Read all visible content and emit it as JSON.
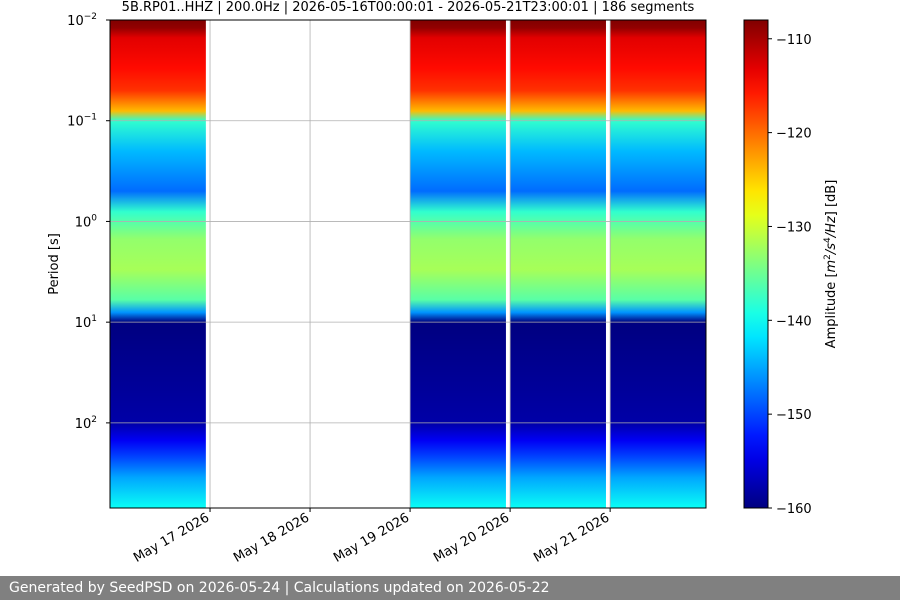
{
  "chart_data": {
    "type": "heatmap",
    "title": "5B.RP01..HHZ | 200.0Hz | 2026-05-16T00:00:01 - 2026-05-21T23:00:01 | 186 segments",
    "xlabel": "",
    "ylabel": "Period [s]",
    "yscale": "log",
    "y_inverted": true,
    "ylim": [
      0.01,
      700
    ],
    "x_range_days": [
      "2026-05-16T00:00",
      "2026-05-21T23:00"
    ],
    "x_ticks": [
      {
        "date": "2026-05-17",
        "label": "May 17 2026"
      },
      {
        "date": "2026-05-18",
        "label": "May 18 2026"
      },
      {
        "date": "2026-05-19",
        "label": "May 19 2026"
      },
      {
        "date": "2026-05-20",
        "label": "May 20 2026"
      },
      {
        "date": "2026-05-21",
        "label": "May 21 2026"
      }
    ],
    "y_ticks": [
      {
        "value": 0.01,
        "base": "10",
        "exp": "−2"
      },
      {
        "value": 0.1,
        "base": "10",
        "exp": "−1"
      },
      {
        "value": 1,
        "base": "10",
        "exp": "0"
      },
      {
        "value": 10,
        "base": "10",
        "exp": "1"
      },
      {
        "value": 100,
        "base": "10",
        "exp": "2"
      }
    ],
    "data_segments": [
      {
        "start": "2026-05-16T00:00",
        "end": "2026-05-16T23:00"
      },
      {
        "start": "2026-05-19T00:00",
        "end": "2026-05-19T23:00"
      },
      {
        "start": "2026-05-20T00:00",
        "end": "2026-05-20T23:00"
      },
      {
        "start": "2026-05-21T00:00",
        "end": "2026-05-21T23:00"
      }
    ],
    "amplitude_profile_db": [
      {
        "period": 0.01,
        "value": -108
      },
      {
        "period": 0.012,
        "value": -109
      },
      {
        "period": 0.015,
        "value": -113
      },
      {
        "period": 0.03,
        "value": -115
      },
      {
        "period": 0.05,
        "value": -117
      },
      {
        "period": 0.08,
        "value": -124
      },
      {
        "period": 0.1,
        "value": -138
      },
      {
        "period": 0.2,
        "value": -144
      },
      {
        "period": 0.5,
        "value": -148
      },
      {
        "period": 0.8,
        "value": -138
      },
      {
        "period": 1.5,
        "value": -133
      },
      {
        "period": 3,
        "value": -132
      },
      {
        "period": 6,
        "value": -136
      },
      {
        "period": 8,
        "value": -146
      },
      {
        "period": 10,
        "value": -160
      },
      {
        "period": 100,
        "value": -158
      },
      {
        "period": 150,
        "value": -154
      },
      {
        "period": 220,
        "value": -150
      },
      {
        "period": 350,
        "value": -145
      },
      {
        "period": 700,
        "value": -140
      }
    ],
    "colorbar": {
      "label": "Amplitude [m²/s⁴/Hz] [dB]",
      "label_plain": "Amplitude [",
      "label_unit_m": "m",
      "label_unit_sup1": "2",
      "label_unit_mid": "/s",
      "label_unit_sup2": "4",
      "label_unit_end": "/Hz",
      "label_suffix": "] [dB]",
      "min": -160,
      "max": -108,
      "colormap": "jet",
      "ticks": [
        {
          "value": -110,
          "label": "−110"
        },
        {
          "value": -120,
          "label": "−120"
        },
        {
          "value": -130,
          "label": "−130"
        },
        {
          "value": -140,
          "label": "−140"
        },
        {
          "value": -150,
          "label": "−150"
        },
        {
          "value": -160,
          "label": "−160"
        }
      ]
    },
    "grid": true
  },
  "footer": {
    "text": "Generated by SeedPSD on 2026-05-24 | Calculations updated on 2026-05-22"
  }
}
